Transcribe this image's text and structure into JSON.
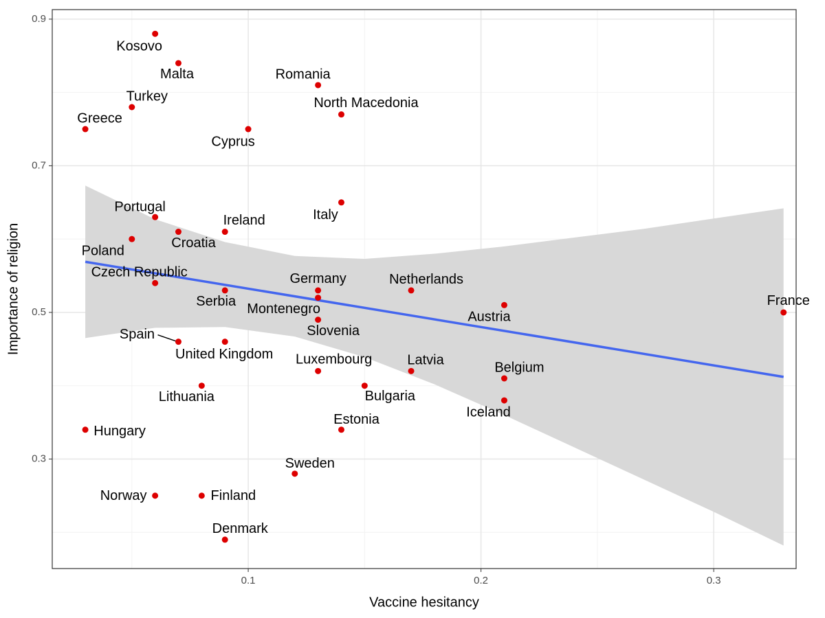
{
  "chart_data": {
    "type": "scatter",
    "x_label": "Vaccine hesitancy",
    "y_label": "Importance of religion",
    "labels": [
      "Kosovo",
      "Malta",
      "Romania",
      "Turkey",
      "North Macedonia",
      "Greece",
      "Cyprus",
      "Italy",
      "Portugal",
      "Croatia",
      "Ireland",
      "Poland",
      "Czech Republic",
      "Serbia",
      "Germany",
      "Montenegro",
      "Netherlands",
      "Austria",
      "France",
      "Slovenia",
      "Spain",
      "United Kingdom",
      "Luxembourg",
      "Latvia",
      "Belgium",
      "Lithuania",
      "Bulgaria",
      "Iceland",
      "Hungary",
      "Estonia",
      "Sweden",
      "Norway",
      "Finland",
      "Denmark"
    ],
    "x": [
      0.06,
      0.07,
      0.13,
      0.05,
      0.14,
      0.03,
      0.1,
      0.14,
      0.06,
      0.07,
      0.09,
      0.05,
      0.06,
      0.09,
      0.13,
      0.13,
      0.17,
      0.21,
      0.33,
      0.13,
      0.07,
      0.09,
      0.13,
      0.17,
      0.21,
      0.08,
      0.15,
      0.21,
      0.03,
      0.14,
      0.12,
      0.06,
      0.08,
      0.09
    ],
    "y": [
      0.88,
      0.84,
      0.81,
      0.78,
      0.77,
      0.75,
      0.75,
      0.65,
      0.63,
      0.61,
      0.61,
      0.6,
      0.54,
      0.53,
      0.53,
      0.52,
      0.53,
      0.51,
      0.5,
      0.49,
      0.46,
      0.46,
      0.42,
      0.42,
      0.41,
      0.4,
      0.4,
      0.38,
      0.34,
      0.34,
      0.28,
      0.25,
      0.25,
      0.19
    ],
    "color": "#dd0000",
    "fit": {
      "x": [
        0.03,
        0.33
      ],
      "y": [
        0.569,
        0.412
      ],
      "color": "#4466ee"
    },
    "band": {
      "x": [
        0.03,
        0.06,
        0.09,
        0.12,
        0.15,
        0.18,
        0.21,
        0.24,
        0.27,
        0.3,
        0.33
      ],
      "upper": [
        0.673,
        0.627,
        0.596,
        0.577,
        0.573,
        0.58,
        0.59,
        0.602,
        0.614,
        0.628,
        0.642
      ],
      "lower": [
        0.465,
        0.479,
        0.48,
        0.467,
        0.439,
        0.402,
        0.36,
        0.316,
        0.272,
        0.228,
        0.182
      ],
      "color": "#d6d6d6"
    },
    "xlim": [
      0.0158,
      0.3354
    ],
    "ylim": [
      0.1506,
      0.913
    ],
    "xticks": [
      0.1,
      0.2,
      0.3
    ],
    "yticks": [
      0.3,
      0.5,
      0.7,
      0.9
    ],
    "xminorticks": [
      0.05,
      0.15,
      0.25
    ],
    "yminorticks": [
      0.2,
      0.4,
      0.6,
      0.8
    ],
    "grid": true
  }
}
